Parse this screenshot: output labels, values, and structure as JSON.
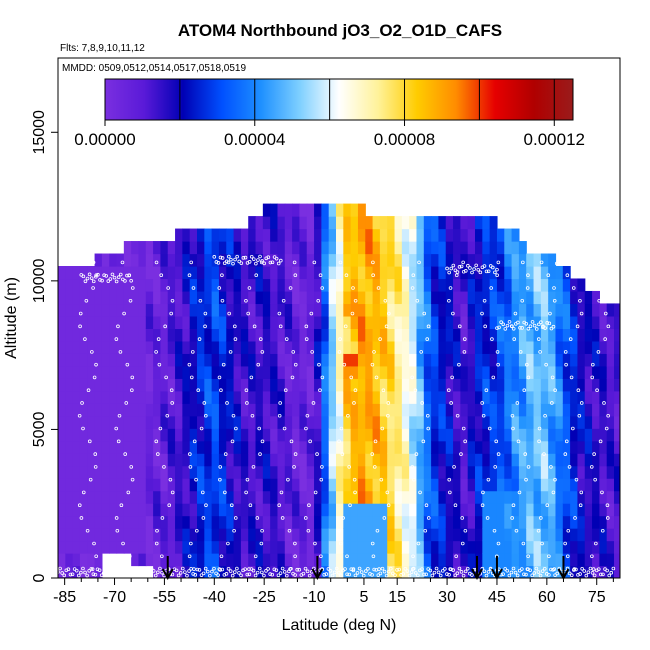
{
  "chart_data": {
    "type": "heatmap",
    "title": "ATOM4 Northbound jO3_O2_O1D_CAFS",
    "subtitle_flights": "Flts: 7,8,9,10,11,12",
    "subtitle_dates": "MMDD: 0509,0512,0514,0517,0518,0519",
    "xlabel": "Latitude (deg N)",
    "ylabel": "Altitude (m)",
    "xlim": [
      -87,
      82
    ],
    "ylim": [
      0,
      17500
    ],
    "x_ticks": [
      -85,
      -70,
      -55,
      -40,
      -25,
      -10,
      5,
      15,
      30,
      45,
      60,
      75
    ],
    "y_ticks": [
      0,
      5000,
      10000,
      15000
    ],
    "colorbar": {
      "range": [
        0,
        0.000125
      ],
      "ticks": [
        0,
        4e-05,
        8e-05,
        0.00012
      ],
      "tick_labels": [
        "0.00000",
        "0.00004",
        "0.00008",
        "0.00012"
      ],
      "colors": [
        "#7a2fe0",
        "#5a1ad8",
        "#0000b4",
        "#0050ff",
        "#1e90ff",
        "#7fd0ff",
        "#ffffff",
        "#fff29a",
        "#ffcc00",
        "#ff8c00",
        "#e60000",
        "#b00000",
        "#9a1b1b"
      ]
    },
    "latitude_profile": {
      "lat": [
        -87,
        -75,
        -60,
        -55,
        -50,
        -45,
        -40,
        -35,
        -30,
        -25,
        -20,
        -15,
        -10,
        -5,
        0,
        5,
        10,
        15,
        20,
        25,
        30,
        35,
        40,
        45,
        50,
        55,
        60,
        65,
        70,
        75,
        80
      ],
      "value": [
        3e-06,
        3e-06,
        5e-06,
        8e-06,
        1.4e-05,
        2.4e-05,
        3e-05,
        2e-05,
        1.3e-05,
        1.6e-05,
        1.2e-05,
        6e-06,
        6e-06,
        5e-05,
        8.2e-05,
        9e-05,
        8.5e-05,
        7.4e-05,
        5.8e-05,
        3e-05,
        2.2e-05,
        1.2e-05,
        2.5e-05,
        2.8e-05,
        4e-05,
        4.8e-05,
        5e-05,
        3.4e-05,
        2e-05,
        1.6e-05,
        1.2e-05
      ]
    },
    "top_altitude": {
      "lat": [
        -87,
        -80,
        -70,
        -60,
        -55,
        -50,
        -45,
        -40,
        -35,
        -30,
        -25,
        -20,
        -15,
        -10,
        -5,
        0,
        5,
        10,
        15,
        20,
        25,
        30,
        35,
        40,
        45,
        50,
        55,
        60,
        65,
        70,
        75,
        80
      ],
      "alt": [
        10200,
        10200,
        10800,
        11200,
        11200,
        11400,
        11400,
        11400,
        11700,
        11700,
        12200,
        12200,
        12200,
        12200,
        12200,
        12200,
        12200,
        12000,
        12000,
        12000,
        12000,
        12000,
        12000,
        12000,
        11700,
        11700,
        10900,
        10700,
        10400,
        9800,
        9300,
        9100
      ]
    },
    "bottom_altitude": {
      "lat": [
        -87,
        -75,
        -72,
        -67,
        -60,
        -55,
        -50,
        -40,
        80
      ],
      "alt": [
        0,
        0,
        900,
        700,
        350,
        0,
        0,
        0,
        0
      ]
    },
    "hotspots": [
      {
        "lat": 1,
        "alt": 7200,
        "value": 0.00012
      },
      {
        "lat": 1,
        "alt": 9200,
        "value": 0.00011
      },
      {
        "lat": 3,
        "alt": 5000,
        "value": 9.5e-05
      }
    ],
    "flight_track_points_per_leg": [
      {
        "lat_range": [
          -87,
          80
        ],
        "alt": 200
      },
      {
        "lat_range": [
          -80,
          -65
        ],
        "alt": 10100
      },
      {
        "lat_range": [
          -40,
          -20
        ],
        "alt": 10700
      },
      {
        "lat_range": [
          30,
          45
        ],
        "alt": 10400
      },
      {
        "lat_range": [
          45,
          62
        ],
        "alt": 8500
      },
      {
        "lat_range": [
          63,
          80
        ],
        "alt": 10700
      }
    ],
    "arrows_lat": [
      -54,
      -9,
      39,
      45,
      65
    ],
    "grid": false,
    "legend": "colorbar-top"
  }
}
